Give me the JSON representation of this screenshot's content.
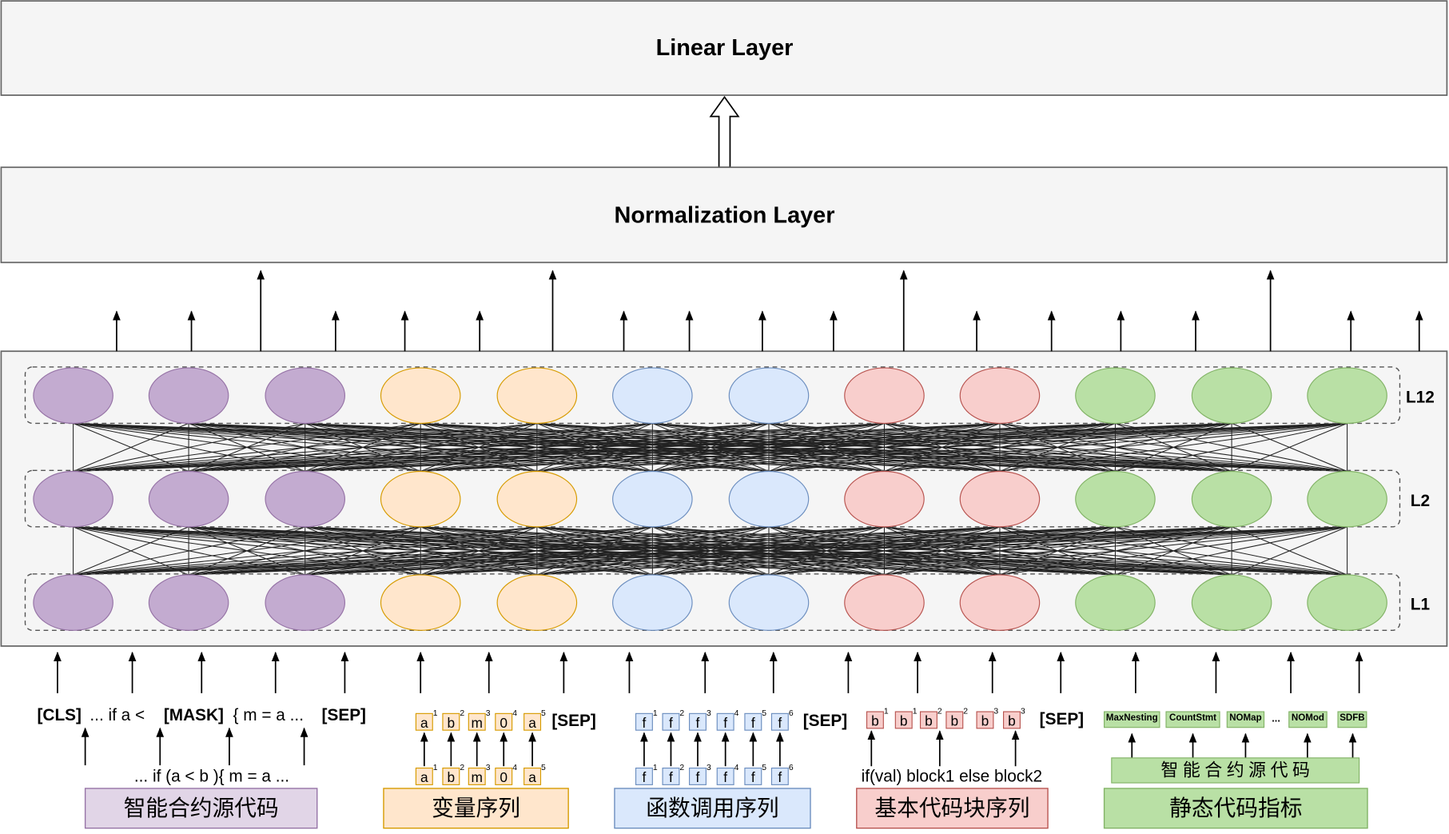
{
  "layers": {
    "linear": "Linear Layer",
    "normalization": "Normalization Layer"
  },
  "layer_labels": [
    "L12",
    "L2",
    "L1"
  ],
  "source_code": {
    "tokens": [
      "[CLS]",
      "... if  a < ",
      "[MASK]",
      "{  m = a ...",
      "[SEP]"
    ],
    "source": "... if (a < b ){ m = a ...",
    "label": "智能合约源代码"
  },
  "variables": {
    "tokens": [
      {
        "text": "a",
        "sup": "1"
      },
      {
        "text": "b",
        "sup": "2"
      },
      {
        "text": "m",
        "sup": "3"
      },
      {
        "text": "0",
        "sup": "4"
      },
      {
        "text": "a",
        "sup": "5"
      }
    ],
    "sep": "[SEP]",
    "source_tokens": [
      {
        "text": "a",
        "sup": "1"
      },
      {
        "text": "b",
        "sup": "2"
      },
      {
        "text": "m",
        "sup": "3"
      },
      {
        "text": "0",
        "sup": "4"
      },
      {
        "text": "a",
        "sup": "5"
      }
    ],
    "label": "变量序列"
  },
  "functions": {
    "tokens": [
      {
        "text": "f",
        "sup": "1"
      },
      {
        "text": "f",
        "sup": "2"
      },
      {
        "text": "f",
        "sup": "3"
      },
      {
        "text": "f",
        "sup": "4"
      },
      {
        "text": "f",
        "sup": "5"
      },
      {
        "text": "f",
        "sup": "6"
      }
    ],
    "sep": "[SEP]",
    "source_tokens": [
      {
        "text": "f",
        "sup": "1"
      },
      {
        "text": "f",
        "sup": "2"
      },
      {
        "text": "f",
        "sup": "3"
      },
      {
        "text": "f",
        "sup": "4"
      },
      {
        "text": "f",
        "sup": "5"
      },
      {
        "text": "f",
        "sup": "6"
      }
    ],
    "label": "函数调用序列"
  },
  "blocks": {
    "tokens": [
      {
        "text": "b",
        "sup": "1"
      },
      {
        "text": "b",
        "sup": "1"
      },
      {
        "text": "b",
        "sup": "2"
      },
      {
        "text": "b",
        "sup": "2"
      },
      {
        "text": "b",
        "sup": "3"
      },
      {
        "text": "b",
        "sup": "3"
      }
    ],
    "sep": "[SEP]",
    "source": "if(val) block1 else block2",
    "label": "基本代码块序列"
  },
  "metrics": {
    "tokens": [
      "MaxNesting",
      "CountStmt",
      "NOMap",
      "...",
      "NOMod",
      "SDFB"
    ],
    "source": "智 能 合 约 源 代 码",
    "label": "静态代码指标"
  }
}
